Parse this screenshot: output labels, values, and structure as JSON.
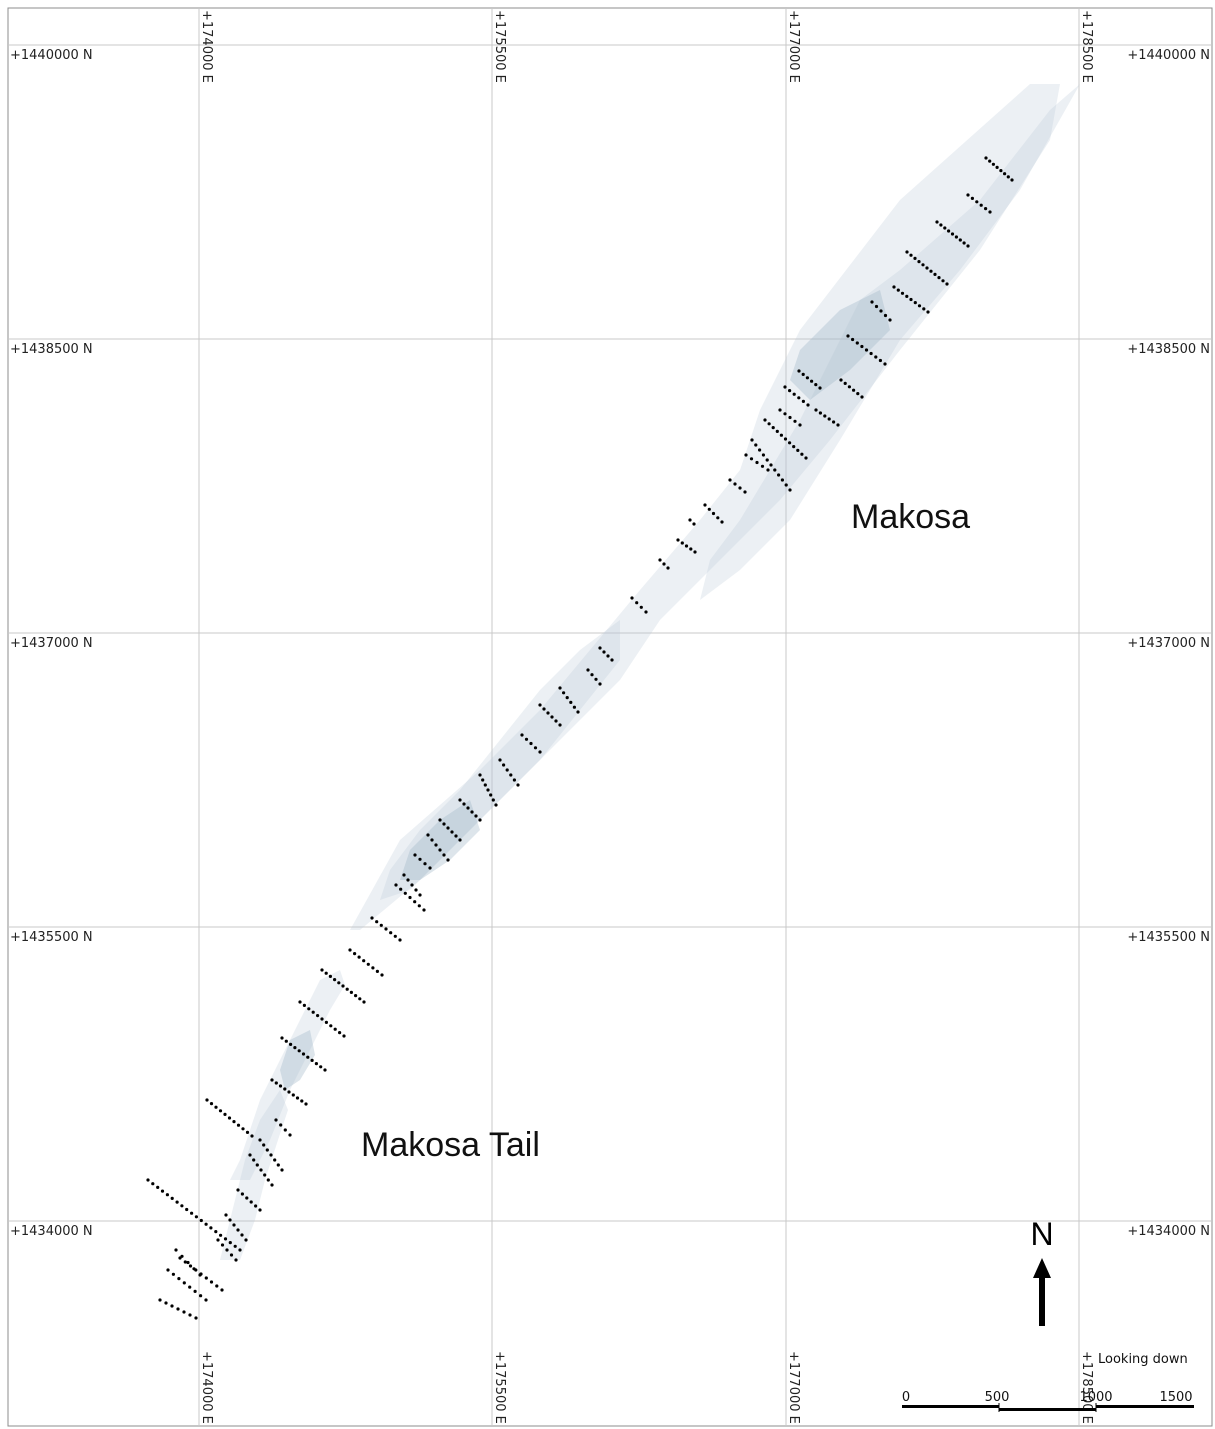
{
  "map": {
    "view": "Looking down",
    "grid": {
      "northings": [
        "+1440000 N",
        "+1438500 N",
        "+1437000 N",
        "+1435500 N",
        "+1434000 N"
      ],
      "eastings": [
        "+174000 E",
        "+175500 E",
        "+177000 E",
        "+178500 E"
      ]
    },
    "areas": [
      {
        "name": "Makosa"
      },
      {
        "name": "Makosa Tail"
      }
    ],
    "north_arrow": {
      "label": "N"
    },
    "scale_bar": {
      "ticks": [
        "0",
        "500",
        "1000",
        "1500"
      ]
    },
    "colors": {
      "ore_body": "#b9c8d6",
      "drill_hole": "#000000",
      "grid": "#c8c8c8"
    }
  }
}
